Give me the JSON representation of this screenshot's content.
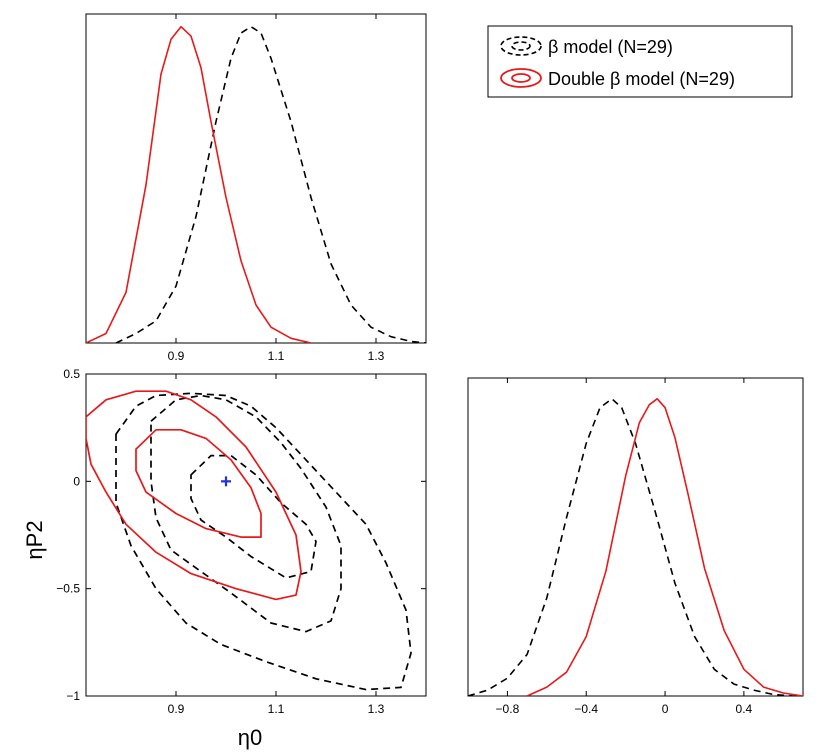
{
  "legend": {
    "entries": [
      {
        "label": "β model (N=29)",
        "color": "#000000",
        "style": "dashed"
      },
      {
        "label": "Double β model (N=29)",
        "color": "#e8191a",
        "style": "solid"
      }
    ],
    "placement": "top-right"
  },
  "colors": {
    "beta_model": "#000000",
    "double_beta_model": "#e8191a",
    "marker": "#2233dd"
  },
  "chart_data": [
    {
      "type": "line",
      "panel": "eta0-marginal",
      "xlim": [
        0.72,
        1.4
      ],
      "ylim": [
        0,
        1.04
      ],
      "x_ticks": [
        "0.9",
        "1.1",
        "1.3"
      ],
      "x_tick_values": [
        0.9,
        1.1,
        1.3
      ],
      "y_ticks": [],
      "series": [
        {
          "name": "β model (N=29)",
          "style": "dashed",
          "x": [
            0.78,
            0.82,
            0.86,
            0.9,
            0.94,
            0.98,
            1.01,
            1.03,
            1.05,
            1.07,
            1.09,
            1.13,
            1.17,
            1.21,
            1.25,
            1.29,
            1.33,
            1.37,
            1.4
          ],
          "y": [
            0.0,
            0.03,
            0.07,
            0.18,
            0.4,
            0.7,
            0.9,
            0.98,
            1.0,
            0.98,
            0.9,
            0.7,
            0.46,
            0.25,
            0.12,
            0.05,
            0.02,
            0.005,
            0.0
          ]
        },
        {
          "name": "Double β model (N=29)",
          "style": "solid",
          "x": [
            0.72,
            0.76,
            0.8,
            0.84,
            0.87,
            0.89,
            0.91,
            0.93,
            0.95,
            0.97,
            1.0,
            1.03,
            1.06,
            1.09,
            1.13,
            1.17
          ],
          "y": [
            0.0,
            0.03,
            0.16,
            0.5,
            0.85,
            0.96,
            1.0,
            0.97,
            0.87,
            0.7,
            0.46,
            0.26,
            0.12,
            0.05,
            0.015,
            0.0
          ]
        }
      ]
    },
    {
      "type": "scatter",
      "panel": "joint-contours",
      "xlabel": "η0",
      "ylabel": "ηP2",
      "xlim": [
        0.72,
        1.4
      ],
      "ylim": [
        -1,
        0.5
      ],
      "x_ticks": [
        "0.9",
        "1.1",
        "1.3"
      ],
      "x_tick_values": [
        0.9,
        1.1,
        1.3
      ],
      "y_ticks": [
        "0.5",
        "0",
        "−0.5",
        "−1"
      ],
      "y_tick_values": [
        0.5,
        0,
        -0.5,
        -1
      ],
      "contours": [
        {
          "series": "β model (N=29)",
          "level": "inner",
          "style": "dashed",
          "points": [
            [
              0.93,
              0.03
            ],
            [
              0.97,
              0.12
            ],
            [
              1.01,
              0.12
            ],
            [
              1.06,
              0.03
            ],
            [
              1.11,
              -0.1
            ],
            [
              1.16,
              -0.2
            ],
            [
              1.18,
              -0.28
            ],
            [
              1.17,
              -0.42
            ],
            [
              1.12,
              -0.45
            ],
            [
              1.05,
              -0.35
            ],
            [
              1.0,
              -0.26
            ],
            [
              0.95,
              -0.18
            ],
            [
              0.93,
              -0.08
            ],
            [
              0.93,
              0.03
            ]
          ]
        },
        {
          "series": "β model (N=29)",
          "level": "outer",
          "style": "dashed",
          "points": [
            [
              0.85,
              0.28
            ],
            [
              0.9,
              0.38
            ],
            [
              0.95,
              0.4
            ],
            [
              1.0,
              0.38
            ],
            [
              1.06,
              0.3
            ],
            [
              1.11,
              0.18
            ],
            [
              1.15,
              0.06
            ],
            [
              1.2,
              -0.12
            ],
            [
              1.23,
              -0.3
            ],
            [
              1.23,
              -0.5
            ],
            [
              1.21,
              -0.65
            ],
            [
              1.16,
              -0.7
            ],
            [
              1.09,
              -0.66
            ],
            [
              1.01,
              -0.52
            ],
            [
              0.95,
              -0.42
            ],
            [
              0.89,
              -0.32
            ],
            [
              0.86,
              -0.17
            ],
            [
              0.85,
              0.0
            ],
            [
              0.85,
              0.15
            ],
            [
              0.85,
              0.28
            ]
          ]
        },
        {
          "series": "β model (N=29)",
          "level": "outermost",
          "style": "dashed",
          "points": [
            [
              0.78,
              0.22
            ],
            [
              0.82,
              0.35
            ],
            [
              0.86,
              0.4
            ],
            [
              0.93,
              0.41
            ],
            [
              1.0,
              0.4
            ],
            [
              1.05,
              0.35
            ],
            [
              1.1,
              0.25
            ],
            [
              1.16,
              0.1
            ],
            [
              1.22,
              -0.05
            ],
            [
              1.28,
              -0.2
            ],
            [
              1.32,
              -0.38
            ],
            [
              1.36,
              -0.6
            ],
            [
              1.37,
              -0.8
            ],
            [
              1.35,
              -0.96
            ],
            [
              1.28,
              -0.97
            ],
            [
              1.18,
              -0.92
            ],
            [
              1.08,
              -0.84
            ],
            [
              0.99,
              -0.76
            ],
            [
              0.92,
              -0.66
            ],
            [
              0.86,
              -0.5
            ],
            [
              0.81,
              -0.3
            ],
            [
              0.78,
              -0.1
            ],
            [
              0.78,
              0.05
            ],
            [
              0.78,
              0.22
            ]
          ]
        },
        {
          "series": "Double β model (N=29)",
          "level": "inner",
          "style": "solid",
          "points": [
            [
              0.82,
              0.15
            ],
            [
              0.86,
              0.24
            ],
            [
              0.91,
              0.24
            ],
            [
              0.96,
              0.2
            ],
            [
              1.01,
              0.1
            ],
            [
              1.05,
              -0.03
            ],
            [
              1.07,
              -0.15
            ],
            [
              1.07,
              -0.26
            ],
            [
              1.03,
              -0.26
            ],
            [
              0.96,
              -0.22
            ],
            [
              0.9,
              -0.15
            ],
            [
              0.84,
              -0.05
            ],
            [
              0.82,
              0.05
            ],
            [
              0.82,
              0.15
            ]
          ]
        },
        {
          "series": "Double β model (N=29)",
          "level": "outer",
          "style": "solid",
          "points": [
            [
              0.72,
              0.3
            ],
            [
              0.76,
              0.38
            ],
            [
              0.82,
              0.42
            ],
            [
              0.88,
              0.42
            ],
            [
              0.93,
              0.38
            ],
            [
              0.98,
              0.3
            ],
            [
              1.04,
              0.16
            ],
            [
              1.1,
              -0.05
            ],
            [
              1.14,
              -0.25
            ],
            [
              1.15,
              -0.42
            ],
            [
              1.14,
              -0.53
            ],
            [
              1.1,
              -0.55
            ],
            [
              1.02,
              -0.5
            ],
            [
              0.93,
              -0.43
            ],
            [
              0.86,
              -0.33
            ],
            [
              0.8,
              -0.2
            ],
            [
              0.76,
              -0.05
            ],
            [
              0.73,
              0.08
            ],
            [
              0.72,
              0.2
            ],
            [
              0.72,
              0.3
            ]
          ]
        }
      ],
      "markers": [
        {
          "x": 1.0,
          "y": 0.0,
          "symbol": "plus",
          "color": "#2233dd"
        }
      ]
    },
    {
      "type": "line",
      "panel": "etaP2-marginal",
      "xlim": [
        -1.0,
        0.7
      ],
      "ylim": [
        0,
        1.07
      ],
      "x_ticks": [
        "−0.8",
        "−0.4",
        "0",
        "0.4"
      ],
      "x_tick_values": [
        -0.8,
        -0.4,
        0,
        0.4
      ],
      "y_ticks": [],
      "series": [
        {
          "name": "β model (N=29)",
          "style": "dashed",
          "x": [
            -1.0,
            -0.9,
            -0.8,
            -0.7,
            -0.6,
            -0.5,
            -0.4,
            -0.33,
            -0.27,
            -0.22,
            -0.15,
            -0.05,
            0.05,
            0.15,
            0.25,
            0.35,
            0.45,
            0.55,
            0.65
          ],
          "y": [
            0.0,
            0.02,
            0.06,
            0.14,
            0.33,
            0.6,
            0.85,
            0.97,
            1.0,
            0.97,
            0.85,
            0.62,
            0.38,
            0.2,
            0.09,
            0.04,
            0.02,
            0.005,
            0.0
          ]
        },
        {
          "name": "Double β model (N=29)",
          "style": "solid",
          "x": [
            -0.7,
            -0.6,
            -0.5,
            -0.4,
            -0.3,
            -0.2,
            -0.13,
            -0.08,
            -0.04,
            0.0,
            0.05,
            0.12,
            0.2,
            0.3,
            0.4,
            0.5,
            0.6,
            0.7
          ],
          "y": [
            0.0,
            0.03,
            0.08,
            0.2,
            0.42,
            0.74,
            0.92,
            0.98,
            1.0,
            0.97,
            0.87,
            0.67,
            0.43,
            0.22,
            0.09,
            0.03,
            0.01,
            0.0
          ]
        }
      ]
    }
  ]
}
